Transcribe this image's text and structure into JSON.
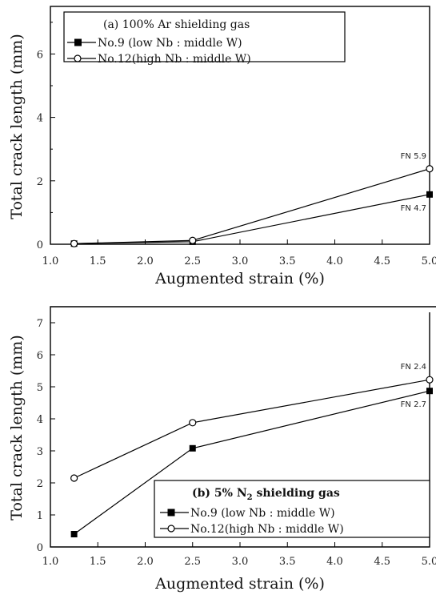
{
  "chart_data": [
    {
      "type": "line",
      "legend_title": "(a) 100% Ar shielding gas",
      "xlabel": "Augmented strain (%)",
      "ylabel": "Total crack length (mm)",
      "xlim": [
        1.0,
        5.0
      ],
      "ylim": [
        0,
        7.5
      ],
      "xticks": [
        "1.0",
        "1.5",
        "2.0",
        "2.5",
        "3.0",
        "3.5",
        "4.0",
        "4.5",
        "5.0"
      ],
      "yticks": [
        "0",
        "2",
        "4",
        "6"
      ],
      "legend_position": "top-left",
      "series": [
        {
          "name": "No.9  (low  Nb : middle W)",
          "marker": "filled-square",
          "x": [
            1.25,
            2.5,
            5.0
          ],
          "y": [
            0.02,
            0.08,
            1.57
          ]
        },
        {
          "name": "No.12(high Nb : middle W)",
          "marker": "open-circle",
          "x": [
            1.25,
            2.5,
            5.0
          ],
          "y": [
            0.02,
            0.12,
            2.38
          ]
        }
      ],
      "annotations": [
        {
          "text": "FN 5.9",
          "series": 1,
          "point": 2,
          "pos": "above-left"
        },
        {
          "text": "FN 4.7",
          "series": 0,
          "point": 2,
          "pos": "below-left"
        }
      ]
    },
    {
      "type": "line",
      "legend_title": "(b) 5% N",
      "legend_title_sub": "2",
      "legend_title_rest": " shielding gas",
      "xlabel": "Augmented strain (%)",
      "ylabel": "Total crack length (mm)",
      "xlim": [
        1.0,
        5.0
      ],
      "ylim": [
        0,
        7.5
      ],
      "xticks": [
        "1.0",
        "1.5",
        "2.0",
        "2.5",
        "3.0",
        "3.5",
        "4.0",
        "4.5",
        "5.0"
      ],
      "yticks": [
        "0",
        "1",
        "2",
        "3",
        "4",
        "5",
        "6",
        "7"
      ],
      "legend_position": "bottom-right",
      "series": [
        {
          "name": "No.9  (low  Nb : middle W)",
          "marker": "filled-square",
          "x": [
            1.25,
            2.5,
            5.0
          ],
          "y": [
            0.4,
            3.08,
            4.87
          ]
        },
        {
          "name": "No.12(high Nb : middle W)",
          "marker": "open-circle",
          "x": [
            1.25,
            2.5,
            5.0
          ],
          "y": [
            2.15,
            3.88,
            5.22
          ]
        }
      ],
      "annotations": [
        {
          "text": "FN 2.4",
          "series": 1,
          "point": 2,
          "pos": "above-left"
        },
        {
          "text": "FN 2.7",
          "series": 0,
          "point": 2,
          "pos": "below-left"
        }
      ]
    }
  ]
}
